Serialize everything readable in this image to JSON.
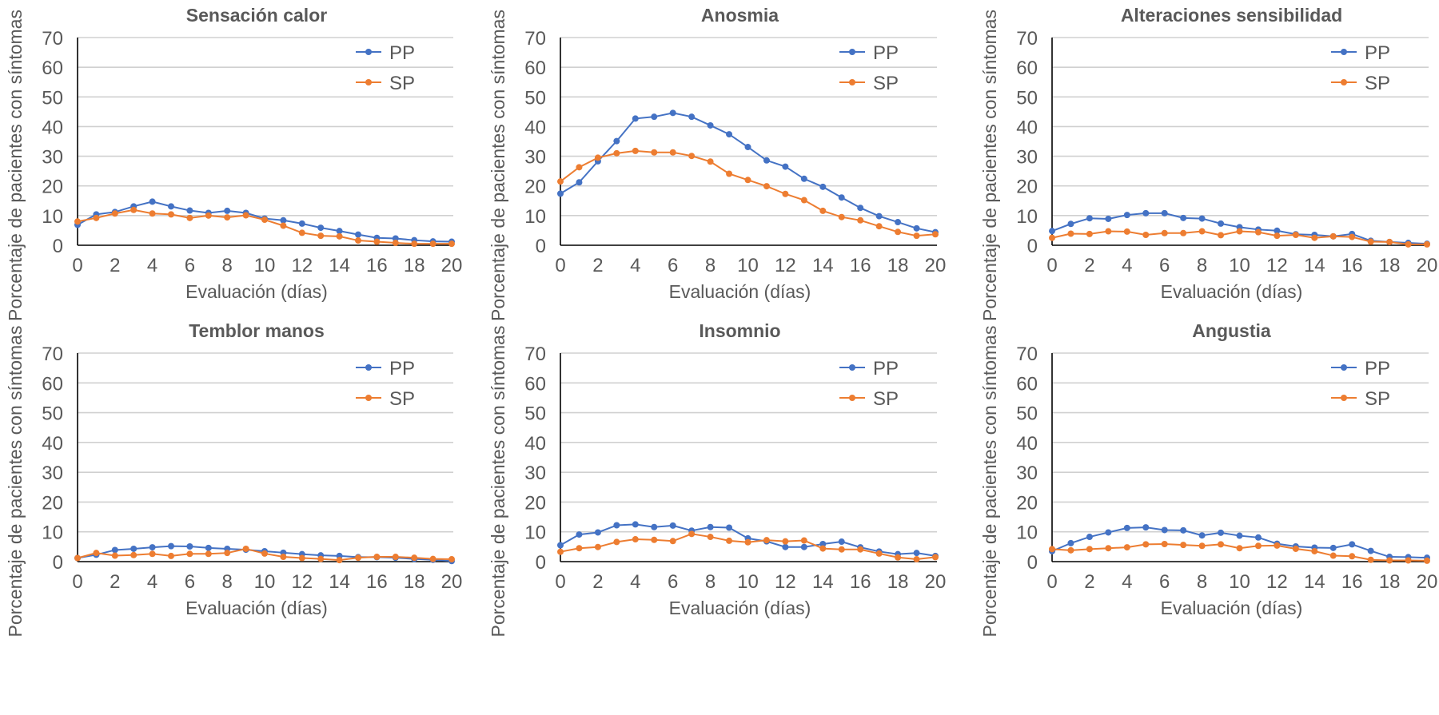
{
  "colors": {
    "PP": "#4472c4",
    "SP": "#ed7d31",
    "text": "#595959",
    "grid": "#d0d0d0"
  },
  "chart_data": [
    {
      "type": "line",
      "title": "Sensación calor",
      "xlabel": "Evaluación (días)",
      "ylabel": "Porcentaje de pacientes con síntomas",
      "ylim": [
        0,
        70
      ],
      "yticks": [
        0,
        10,
        20,
        30,
        40,
        50,
        60,
        70
      ],
      "xticks": [
        0,
        2,
        4,
        6,
        8,
        10,
        12,
        14,
        16,
        18,
        20
      ],
      "grid": true,
      "legend": "top-right",
      "x": [
        0,
        1,
        2,
        3,
        4,
        5,
        6,
        7,
        8,
        9,
        10,
        11,
        12,
        13,
        14,
        15,
        16,
        17,
        18,
        19,
        20
      ],
      "series": [
        {
          "name": "PP",
          "values": [
            6.9,
            10.4,
            11.2,
            13.1,
            14.7,
            13.1,
            11.7,
            10.9,
            11.6,
            10.9,
            9.0,
            8.4,
            7.3,
            5.9,
            4.8,
            3.6,
            2.5,
            2.3,
            1.7,
            1.3,
            1.2
          ]
        },
        {
          "name": "SP",
          "values": [
            8.0,
            9.2,
            10.7,
            11.9,
            10.7,
            10.4,
            9.2,
            10.0,
            9.4,
            10.1,
            8.6,
            6.6,
            4.2,
            3.2,
            3.0,
            1.6,
            1.2,
            0.8,
            0.5,
            0.5,
            0.5
          ]
        }
      ]
    },
    {
      "type": "line",
      "title": "Anosmia",
      "xlabel": "Evaluación (días)",
      "ylabel": "Porcentaje de pacientes con síntomas",
      "ylim": [
        0,
        70
      ],
      "yticks": [
        0,
        10,
        20,
        30,
        40,
        50,
        60,
        70
      ],
      "xticks": [
        0,
        2,
        4,
        6,
        8,
        10,
        12,
        14,
        16,
        18,
        20
      ],
      "grid": true,
      "legend": "top-right",
      "x": [
        0,
        1,
        2,
        3,
        4,
        5,
        6,
        7,
        8,
        9,
        10,
        11,
        12,
        13,
        14,
        15,
        16,
        17,
        18,
        19,
        20
      ],
      "series": [
        {
          "name": "PP",
          "values": [
            17.4,
            21.2,
            28.3,
            35.1,
            42.7,
            43.3,
            44.6,
            43.3,
            40.4,
            37.4,
            33.1,
            28.6,
            26.5,
            22.4,
            19.7,
            16.1,
            12.6,
            9.8,
            7.8,
            5.7,
            4.4
          ]
        },
        {
          "name": "SP",
          "values": [
            21.5,
            26.3,
            29.5,
            31.0,
            31.8,
            31.3,
            31.3,
            30.1,
            28.2,
            24.1,
            22.0,
            19.9,
            17.3,
            15.2,
            11.6,
            9.5,
            8.4,
            6.4,
            4.5,
            3.2,
            3.7
          ]
        }
      ]
    },
    {
      "type": "line",
      "title": "Alteraciones sensibilidad",
      "xlabel": "Evaluación (días)",
      "ylabel": "Porcentaje de pacientes con síntomas",
      "ylim": [
        0,
        70
      ],
      "yticks": [
        0,
        10,
        20,
        30,
        40,
        50,
        60,
        70
      ],
      "xticks": [
        0,
        2,
        4,
        6,
        8,
        10,
        12,
        14,
        16,
        18,
        20
      ],
      "grid": true,
      "legend": "top-right",
      "x": [
        0,
        1,
        2,
        3,
        4,
        5,
        6,
        7,
        8,
        9,
        10,
        11,
        12,
        13,
        14,
        15,
        16,
        17,
        18,
        19,
        20
      ],
      "series": [
        {
          "name": "PP",
          "values": [
            4.8,
            7.2,
            9.1,
            8.9,
            10.2,
            10.8,
            10.8,
            9.2,
            9.0,
            7.3,
            6.1,
            5.3,
            4.9,
            3.7,
            3.5,
            3.0,
            3.8,
            1.5,
            1.1,
            0.8,
            0.5
          ]
        },
        {
          "name": "SP",
          "values": [
            2.5,
            3.9,
            3.8,
            4.7,
            4.6,
            3.5,
            4.1,
            4.1,
            4.7,
            3.4,
            4.7,
            4.4,
            3.2,
            3.5,
            2.5,
            3.0,
            2.8,
            1.2,
            1.1,
            0.3,
            0.3
          ]
        }
      ]
    },
    {
      "type": "line",
      "title": "Temblor manos",
      "xlabel": "Evaluación (días)",
      "ylabel": "Porcentaje de pacientes con síntomas",
      "ylim": [
        0,
        70
      ],
      "yticks": [
        0,
        10,
        20,
        30,
        40,
        50,
        60,
        70
      ],
      "xticks": [
        0,
        2,
        4,
        6,
        8,
        10,
        12,
        14,
        16,
        18,
        20
      ],
      "grid": true,
      "legend": "top-right",
      "x": [
        0,
        1,
        2,
        3,
        4,
        5,
        6,
        7,
        8,
        9,
        10,
        11,
        12,
        13,
        14,
        15,
        16,
        17,
        18,
        19,
        20
      ],
      "series": [
        {
          "name": "PP",
          "values": [
            1.2,
            2.3,
            3.9,
            4.3,
            4.8,
            5.2,
            5.1,
            4.6,
            4.3,
            4.0,
            3.5,
            3.0,
            2.5,
            2.1,
            1.9,
            1.5,
            1.5,
            1.3,
            0.9,
            0.6,
            0.2
          ]
        },
        {
          "name": "SP",
          "values": [
            1.2,
            2.9,
            2.0,
            2.2,
            2.6,
            1.9,
            2.6,
            2.6,
            2.9,
            4.3,
            2.7,
            1.6,
            1.2,
            0.9,
            0.5,
            1.3,
            1.6,
            1.6,
            1.3,
            0.9,
            0.8
          ]
        }
      ]
    },
    {
      "type": "line",
      "title": "Insomnio",
      "xlabel": "Evaluación (días)",
      "ylabel": "Porcentaje de pacientes con síntomas",
      "ylim": [
        0,
        70
      ],
      "yticks": [
        0,
        10,
        20,
        30,
        40,
        50,
        60,
        70
      ],
      "xticks": [
        0,
        2,
        4,
        6,
        8,
        10,
        12,
        14,
        16,
        18,
        20
      ],
      "grid": true,
      "legend": "top-right",
      "x": [
        0,
        1,
        2,
        3,
        4,
        5,
        6,
        7,
        8,
        9,
        10,
        11,
        12,
        13,
        14,
        15,
        16,
        17,
        18,
        19,
        20
      ],
      "series": [
        {
          "name": "PP",
          "values": [
            5.5,
            9.1,
            9.8,
            12.2,
            12.5,
            11.6,
            12.1,
            10.4,
            11.6,
            11.4,
            7.8,
            6.8,
            4.9,
            4.9,
            5.9,
            6.7,
            4.8,
            3.4,
            2.5,
            2.9,
            1.9
          ]
        },
        {
          "name": "SP",
          "values": [
            3.3,
            4.5,
            4.9,
            6.6,
            7.5,
            7.3,
            6.9,
            9.3,
            8.3,
            7.0,
            6.5,
            7.2,
            6.8,
            7.1,
            4.4,
            4.1,
            4.1,
            2.7,
            1.4,
            0.8,
            1.5
          ]
        }
      ]
    },
    {
      "type": "line",
      "title": "Angustia",
      "xlabel": "Evaluación (días)",
      "ylabel": "Porcentaje de pacientes con síntomas",
      "ylim": [
        0,
        70
      ],
      "yticks": [
        0,
        10,
        20,
        30,
        40,
        50,
        60,
        70
      ],
      "xticks": [
        0,
        2,
        4,
        6,
        8,
        10,
        12,
        14,
        16,
        18,
        20
      ],
      "grid": true,
      "legend": "top-right",
      "x": [
        0,
        1,
        2,
        3,
        4,
        5,
        6,
        7,
        8,
        9,
        10,
        11,
        12,
        13,
        14,
        15,
        16,
        17,
        18,
        19,
        20
      ],
      "series": [
        {
          "name": "PP",
          "values": [
            3.5,
            6.2,
            8.3,
            9.8,
            11.3,
            11.5,
            10.6,
            10.5,
            8.8,
            9.7,
            8.7,
            8.1,
            6.0,
            5.1,
            4.7,
            4.6,
            5.8,
            3.6,
            1.6,
            1.5,
            1.3
          ]
        },
        {
          "name": "SP",
          "values": [
            4.2,
            3.8,
            4.2,
            4.5,
            4.8,
            5.8,
            5.9,
            5.6,
            5.3,
            5.8,
            4.5,
            5.3,
            5.4,
            4.3,
            3.5,
            2.0,
            1.8,
            0.6,
            0.4,
            0.4,
            0.3
          ]
        }
      ]
    }
  ]
}
